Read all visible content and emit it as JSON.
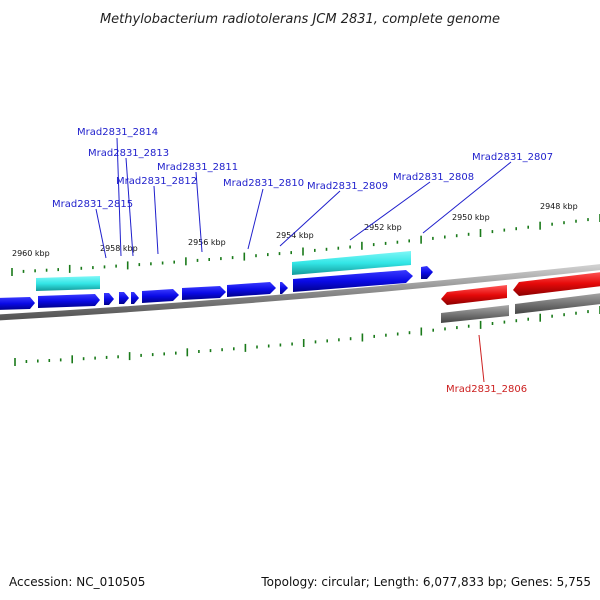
{
  "title": "Methylobacterium radiotolerans JCM 2831, complete genome",
  "footer": {
    "accession": "Accession: NC_010505",
    "summary": "Topology: circular; Length: 6,077,833 bp; Genes: 5,755"
  },
  "colors": {
    "plus_strand_gene": "#0a0ae6",
    "plus_strand_cds": "#33e6e6",
    "minus_strand_gene": "#e60a0a",
    "minus_strand_cds": "#777777",
    "backbone": "#888888",
    "tick": "#1a7a1a",
    "label_blue": "#1f1fcc",
    "label_red": "#cc1f1f"
  },
  "ticks": [
    "2960 kbp",
    "2958 kbp",
    "2956 kbp",
    "2954 kbp",
    "2952 kbp",
    "2950 kbp",
    "2948 kbp"
  ],
  "gene_labels": {
    "g2815": "Mrad2831_2815",
    "g2814": "Mrad2831_2814",
    "g2813": "Mrad2831_2813",
    "g2812": "Mrad2831_2812",
    "g2811": "Mrad2831_2811",
    "g2810": "Mrad2831_2810",
    "g2809": "Mrad2831_2809",
    "g2808": "Mrad2831_2808",
    "g2807": "Mrad2831_2807",
    "g2806": "Mrad2831_2806"
  }
}
